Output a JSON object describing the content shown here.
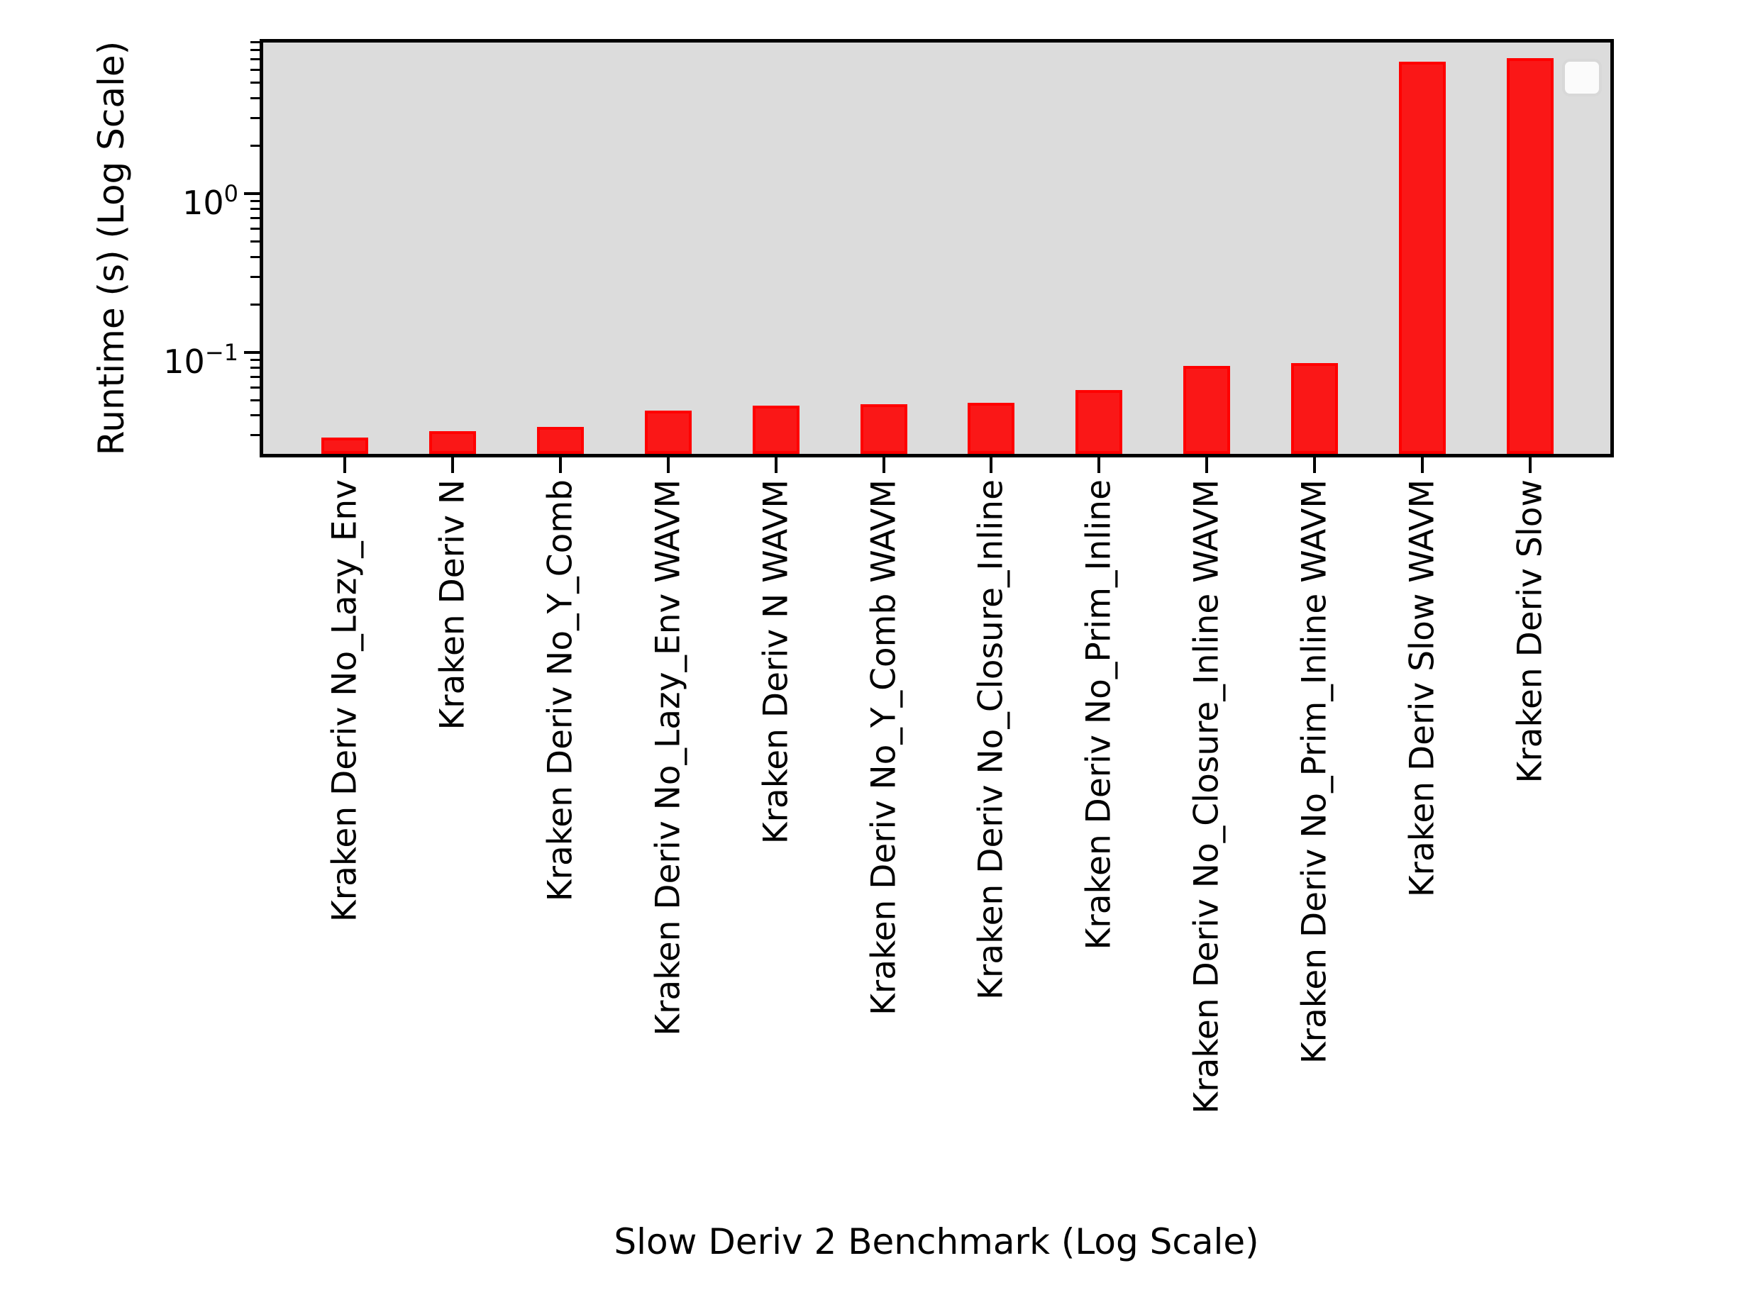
{
  "chart_data": {
    "type": "bar",
    "title": "",
    "xlabel": "Slow Deriv 2 Benchmark (Log Scale)",
    "ylabel": "Runtime (s) (Log Scale)",
    "yscale": "log",
    "ylim": [
      0.0218,
      9.4
    ],
    "grid": false,
    "categories": [
      "Kraken Deriv No_Lazy_Env",
      "Kraken Deriv N",
      "Kraken Deriv No_Y_Comb",
      "Kraken Deriv No_Lazy_Env WAVM",
      "Kraken Deriv N WAVM",
      "Kraken Deriv No_Y_Comb WAVM",
      "Kraken Deriv No_Closure_Inline",
      "Kraken Deriv No_Prim_Inline",
      "Kraken Deriv No_Closure_Inline WAVM",
      "Kraken Deriv No_Prim_Inline WAVM",
      "Kraken Deriv Slow WAVM",
      "Kraken Deriv Slow"
    ],
    "values": [
      0.029,
      0.032,
      0.034,
      0.043,
      0.046,
      0.047,
      0.048,
      0.058,
      0.082,
      0.086,
      6.8,
      7.15
    ],
    "yticks": [
      {
        "value": 1,
        "mantissa": "10",
        "exp": "0"
      },
      {
        "value": 0.1,
        "mantissa": "10",
        "exp": "−1"
      }
    ],
    "legend": {
      "visible": true,
      "entries": []
    },
    "colors": {
      "bar_fill": "#fa1717",
      "bar_edge": "#ff0000",
      "plot_bg": "#dcdcdc",
      "spine": "#000000",
      "figure_bg": "#ffffff",
      "legend_bg": "#fbfbfb",
      "legend_border": "#d8d8d8"
    }
  }
}
